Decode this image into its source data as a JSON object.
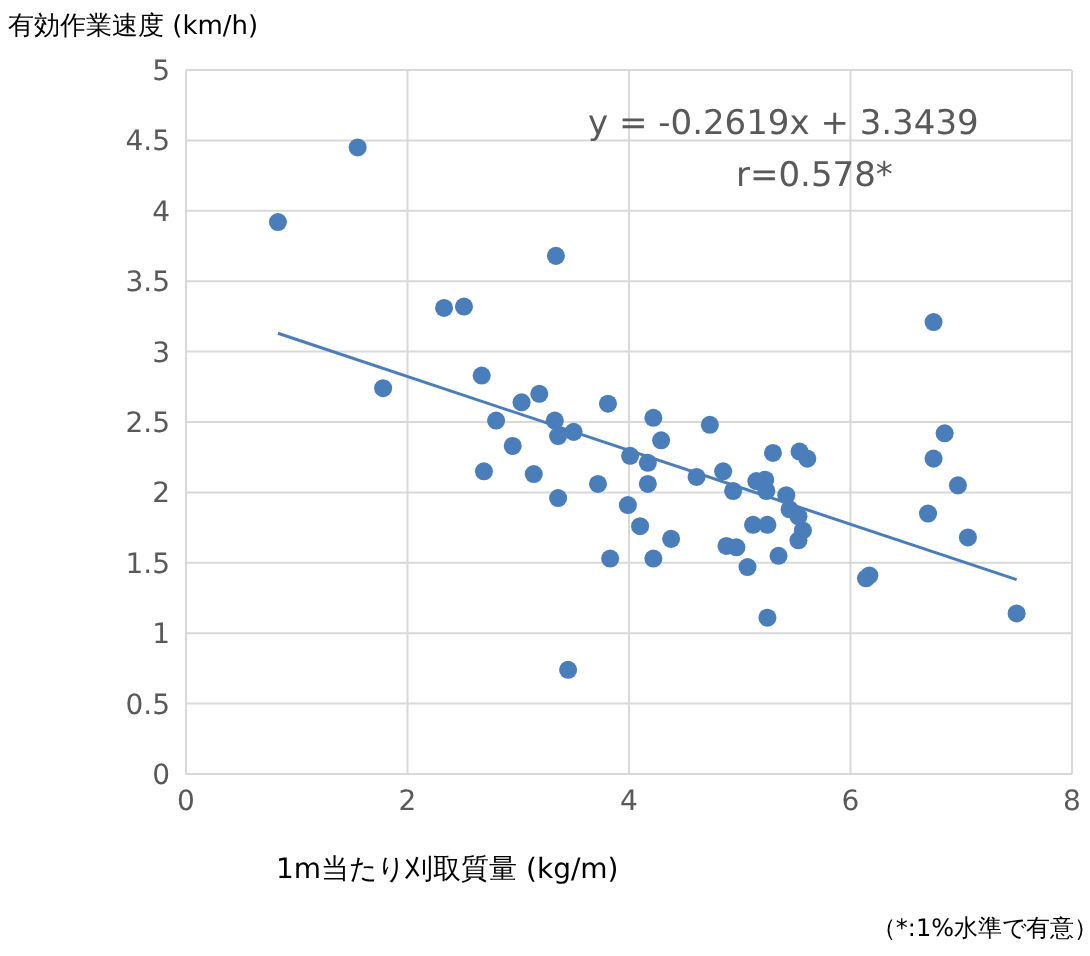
{
  "chart_data": {
    "type": "scatter",
    "xlabel": "1m当たり刈取質量 (kg/m)",
    "ylabel": "有効作業速度 (km/h)",
    "annotations": [
      "y = -0.2619x + 3.3439",
      "r=0.578*",
      "（*:1%水準で有意）"
    ],
    "xlim": [
      0,
      8
    ],
    "xticks": [
      0,
      2,
      4,
      6,
      8
    ],
    "ylim": [
      0,
      5
    ],
    "yticks": [
      0,
      0.5,
      1,
      1.5,
      2,
      2.5,
      3,
      3.5,
      4,
      4.5,
      5
    ],
    "grid": true,
    "series": [
      {
        "marker": "circle",
        "color": "#4a7ebb",
        "x": [
          0.83,
          1.55,
          1.78,
          2.33,
          2.51,
          3.34,
          2.67,
          3.03,
          3.19,
          2.8,
          3.33,
          3.36,
          3.5,
          3.81,
          2.95,
          4.01,
          2.69,
          3.14,
          3.36,
          3.72,
          3.99,
          3.83,
          3.45,
          4.1,
          6.75,
          6.85,
          4.22,
          4.73,
          4.29,
          4.17,
          4.17,
          4.61,
          4.85,
          4.94,
          5.3,
          5.54,
          5.61,
          5.15,
          5.23,
          5.24,
          5.42,
          4.38,
          4.22,
          4.88,
          4.97,
          5.07,
          5.12,
          5.25,
          5.35,
          5.45,
          5.53,
          5.57,
          5.53,
          5.25,
          6.75,
          6.97,
          6.7,
          7.06,
          6.14,
          6.17,
          7.5
        ],
        "values": [
          3.92,
          4.45,
          2.74,
          3.31,
          3.32,
          3.68,
          2.83,
          2.64,
          2.7,
          2.51,
          2.51,
          2.4,
          2.43,
          2.63,
          2.33,
          2.26,
          2.15,
          2.13,
          1.96,
          2.06,
          1.91,
          1.53,
          0.74,
          1.76,
          3.21,
          2.42,
          2.53,
          2.48,
          2.37,
          2.21,
          2.06,
          2.11,
          2.15,
          2.01,
          2.28,
          2.29,
          2.24,
          2.08,
          2.09,
          2.01,
          1.98,
          1.67,
          1.53,
          1.62,
          1.61,
          1.47,
          1.77,
          1.77,
          1.55,
          1.88,
          1.83,
          1.73,
          1.66,
          1.11,
          2.24,
          2.05,
          1.85,
          1.68,
          1.39,
          1.41,
          1.14
        ]
      },
      {
        "type": "line",
        "color": "#4a7ebb",
        "x": [
          0.83,
          7.5
        ],
        "values": [
          3.13,
          1.38
        ]
      }
    ]
  }
}
